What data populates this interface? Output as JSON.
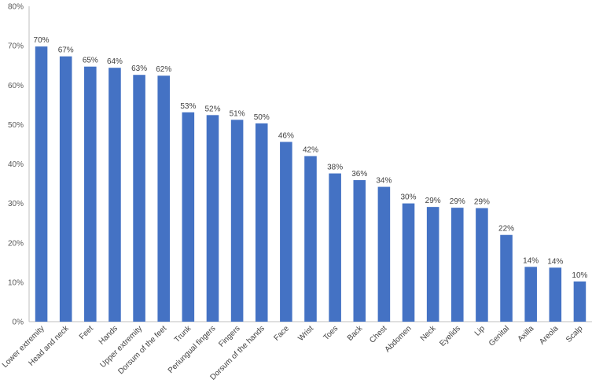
{
  "chart_data": {
    "type": "bar",
    "title": "",
    "xlabel": "",
    "ylabel": "",
    "ylim": [
      0,
      80
    ],
    "y_ticks": [
      "0%",
      "10%",
      "20%",
      "30%",
      "40%",
      "50%",
      "60%",
      "70%",
      "80%"
    ],
    "y_tick_values": [
      0,
      10,
      20,
      30,
      40,
      50,
      60,
      70,
      80
    ],
    "bar_color": "#4472C4",
    "categories": [
      "Lower extremity",
      "Head and neck",
      "Feet",
      "Hands",
      "Upper extremity",
      "Dorsum of the feet",
      "Trunk",
      "Periungual fingers",
      "Fingers",
      "Dorsum of the hands",
      "Face",
      "Wrist",
      "Toes",
      "Back",
      "Chest",
      "Abdomen",
      "Neck",
      "Eyelids",
      "Lip",
      "Genital",
      "Axilla",
      "Areola",
      "Scalp"
    ],
    "values": [
      69.8,
      67.3,
      64.7,
      64.4,
      62.6,
      62.4,
      53.1,
      52.4,
      51.2,
      50.3,
      45.6,
      42.0,
      37.6,
      35.9,
      34.2,
      30.0,
      29.1,
      28.9,
      28.8,
      22.0,
      13.9,
      13.7,
      10.2
    ],
    "data_labels": [
      "70%",
      "67%",
      "65%",
      "64%",
      "63%",
      "62%",
      "53%",
      "52%",
      "51%",
      "50%",
      "46%",
      "42%",
      "38%",
      "36%",
      "34%",
      "30%",
      "29%",
      "29%",
      "29%",
      "22%",
      "14%",
      "14%",
      "10%"
    ],
    "grid": false,
    "legend": "none"
  }
}
